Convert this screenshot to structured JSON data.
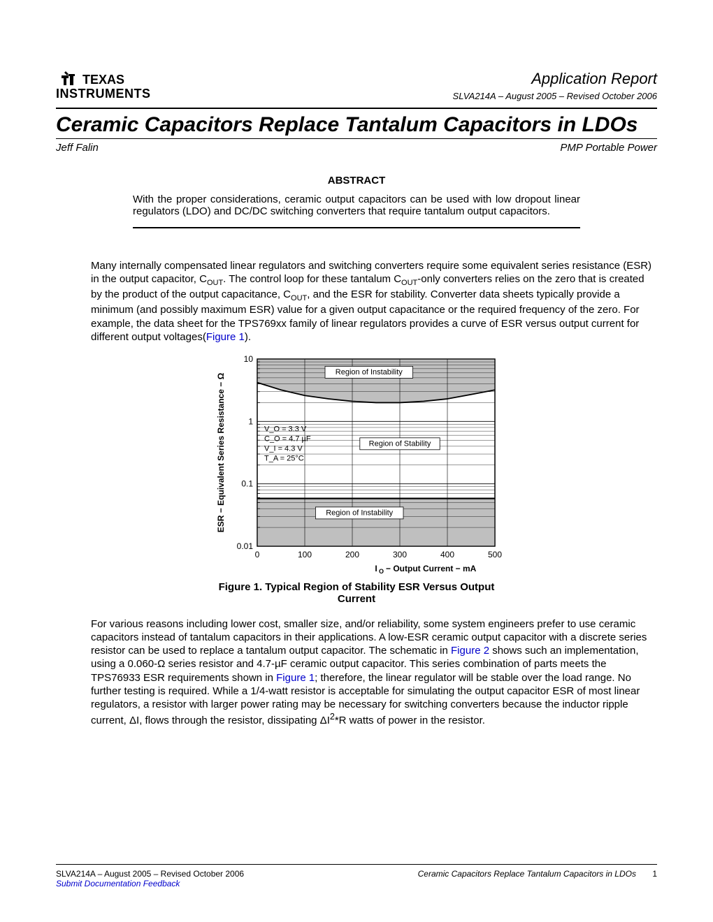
{
  "header": {
    "logo_text_top": "TEXAS",
    "logo_text_bottom": "INSTRUMENTS",
    "report_type": "Application Report",
    "doc_id": "SLVA214A – August 2005 – Revised October 2006"
  },
  "title": "Ceramic Capacitors Replace Tantalum Capacitors in LDOs",
  "author": "Jeff Falin",
  "department": "PMP Portable Power",
  "abstract": {
    "heading": "ABSTRACT",
    "text": "With the proper considerations, ceramic output capacitors can be used with low dropout linear regulators (LDO) and DC/DC switching converters that require tantalum output capacitors."
  },
  "paragraph1": {
    "pre": "Many internally compensated linear regulators and switching converters require some equivalent series resistance (ESR) in the output capacitor, C",
    "sub1": "OUT",
    "mid1": ". The control loop for these tantalum C",
    "sub2": "OUT",
    "mid2": "-only converters relies on the zero that is created by the product of the output capacitance, C",
    "sub3": "OUT",
    "mid3": ", and the ESR for stability. Converter data sheets typically provide a minimum (and possibly maximum ESR) value for a given output capacitance or the required frequency of the zero. For example, the data sheet for the TPS769xx family of linear regulators provides a curve of ESR versus output current for different output voltages(",
    "link1": "Figure 1",
    "post": ")."
  },
  "figure1": {
    "caption": "Figure 1. Typical Region of Stability ESR Versus Output Current",
    "ylabel": "ESR − Equivalent Series Resistance − Ω",
    "xlabel": "I_O − Output Current − mA",
    "xlim": [
      0,
      500
    ],
    "xtick_step": 100,
    "xticks": [
      "0",
      "100",
      "200",
      "300",
      "400",
      "500"
    ],
    "yticks": [
      "10",
      "1",
      "0.1",
      "0.01"
    ],
    "ylim_log": [
      0.01,
      10
    ],
    "upper_curve": [
      {
        "x": 0,
        "y": 4.2
      },
      {
        "x": 50,
        "y": 3.2
      },
      {
        "x": 100,
        "y": 2.6
      },
      {
        "x": 150,
        "y": 2.3
      },
      {
        "x": 200,
        "y": 2.1
      },
      {
        "x": 250,
        "y": 2.0
      },
      {
        "x": 300,
        "y": 2.0
      },
      {
        "x": 350,
        "y": 2.1
      },
      {
        "x": 400,
        "y": 2.3
      },
      {
        "x": 450,
        "y": 2.7
      },
      {
        "x": 500,
        "y": 3.2
      }
    ],
    "lower_line_y": 0.058,
    "region_upper_label": "Region of Instability",
    "region_mid_label": "Region of Stability",
    "region_lower_label": "Region of Instability",
    "conditions": [
      "V_O = 3.3 V",
      "C_O = 4.7 µF",
      "V_I = 4.3 V",
      "T_A = 25°C"
    ],
    "shade_color": "#bfbfbf",
    "line_color": "#000000",
    "grid_color": "#000000",
    "background_color": "#ffffff",
    "line_width": 1.8,
    "font_size_axis": 12,
    "font_size_label": 9
  },
  "paragraph2": {
    "pre": "For various reasons including lower cost, smaller size, and/or reliability, some system engineers prefer to use ceramic capacitors instead of tantalum capacitors in their applications. A low-ESR ceramic output capacitor with a discrete series resistor can be used to replace a tantalum output capacitor. The schematic in ",
    "link1": "Figure 2",
    "mid1": " shows such an implementation, using a 0.060-Ω series resistor and 4.7-µF ceramic output capacitor. This series combination of parts meets the TPS76933 ESR requirements shown in ",
    "link2": "Figure 1",
    "mid2": "; therefore, the linear regulator will be stable over the load range. No further testing is required. While a 1/4-watt resistor is acceptable for simulating the output capacitor ESR of most linear regulators, a resistor with larger power rating may be necessary for switching converters because the inductor ripple current, ΔI, flows through the resistor, dissipating ΔI",
    "sup1": "2",
    "post": "*R watts of power in the resistor."
  },
  "footer": {
    "left_id": "SLVA214A – August 2005 – Revised October 2006",
    "feedback_link": "Submit Documentation Feedback",
    "right_title": "Ceramic Capacitors Replace Tantalum Capacitors in LDOs",
    "page_num": "1"
  }
}
